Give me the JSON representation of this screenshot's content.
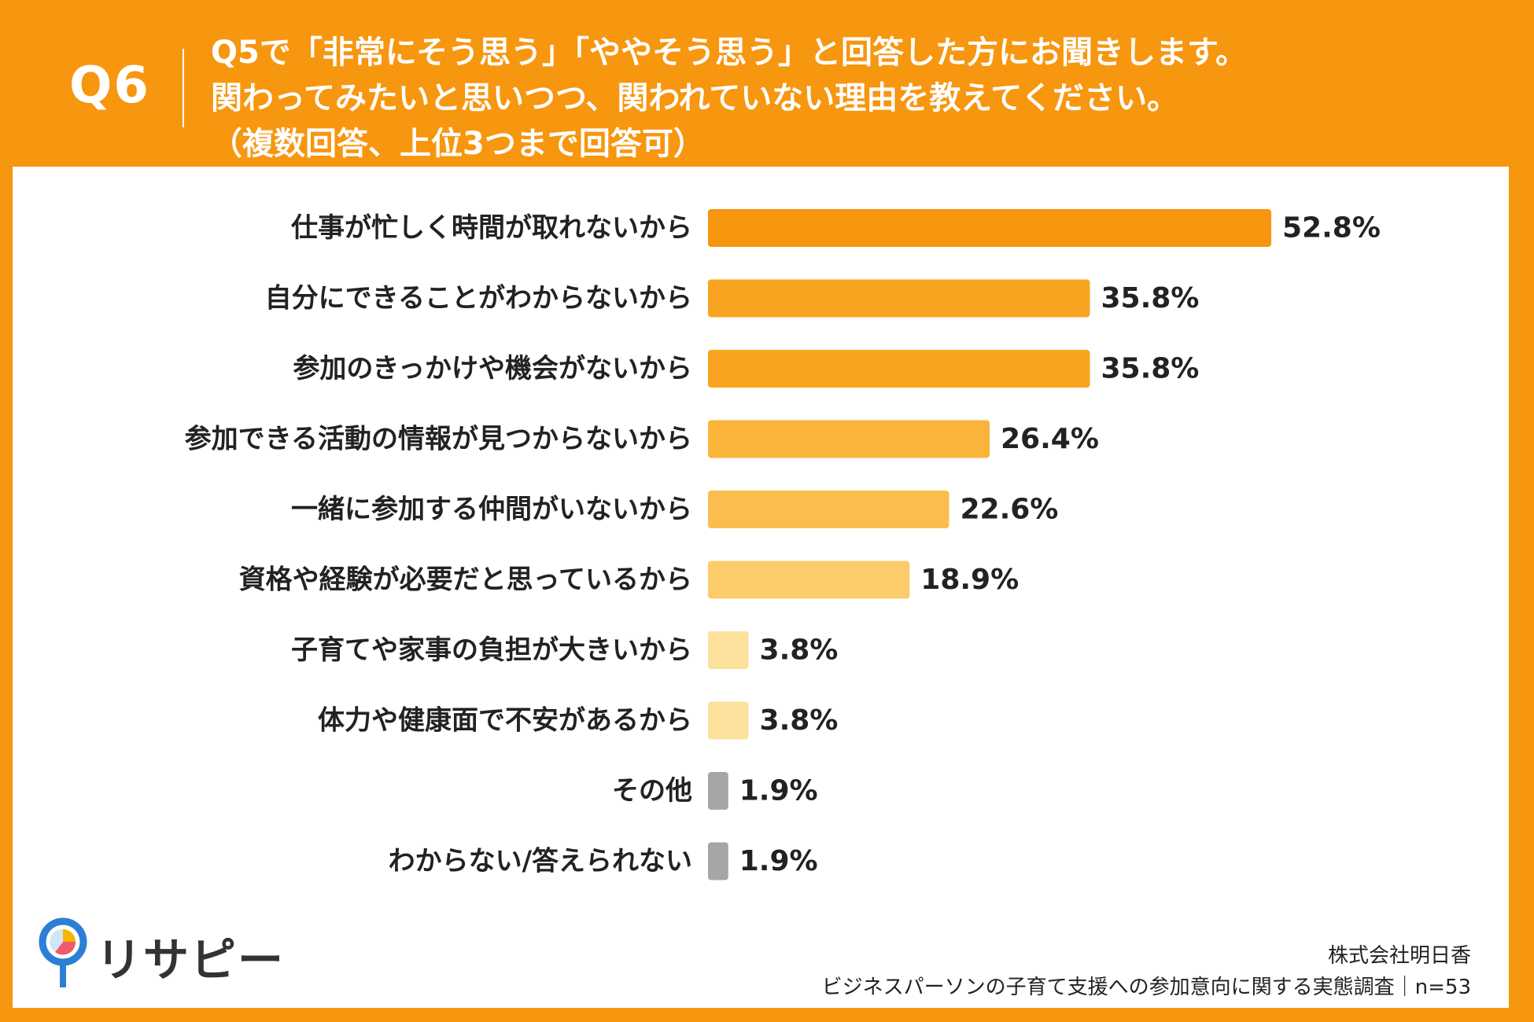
{
  "header": {
    "question_label": "Q6",
    "lines": [
      "Q5で「非常にそう思う」「ややそう思う」と回答した方にお聞きします。",
      "関わってみたいと思いつつ、関われていない理由を教えてください。",
      "（複数回答、上位3つまで回答可）"
    ]
  },
  "colors": {
    "background": "#f7960f",
    "panel": "#ffffff",
    "text": "#222222"
  },
  "chart_data": {
    "type": "bar",
    "orientation": "horizontal",
    "categories": [
      "仕事が忙しく時間が取れないから",
      "自分にできることがわからないから",
      "参加のきっかけや機会がないから",
      "参加できる活動の情報が見つからないから",
      "一緒に参加する仲間がいないから",
      "資格や経験が必要だと思っているから",
      "子育てや家事の負担が大きいから",
      "体力や健康面で不安があるから",
      "その他",
      "わからない/答えられない"
    ],
    "values": [
      52.8,
      35.8,
      35.8,
      26.4,
      22.6,
      18.9,
      3.8,
      3.8,
      1.9,
      1.9
    ],
    "value_labels": [
      "52.8%",
      "35.8%",
      "35.8%",
      "26.4%",
      "22.6%",
      "18.9%",
      "3.8%",
      "3.8%",
      "1.9%",
      "1.9%"
    ],
    "bar_colors": [
      "#f7960f",
      "#f9a420",
      "#f9a420",
      "#fbb43a",
      "#fbbe4e",
      "#fccc6a",
      "#fde29e",
      "#fde29e",
      "#a6a6a6",
      "#a6a6a6"
    ],
    "unit": "%",
    "xlim": [
      0,
      52.8
    ],
    "grid": false,
    "legend": "none"
  },
  "footer": {
    "logo_text": "リサピー",
    "source_company": "株式会社明日香",
    "source_survey": "ビジネスパーソンの子育て支援への参加意向に関する実態調査｜n=53"
  }
}
